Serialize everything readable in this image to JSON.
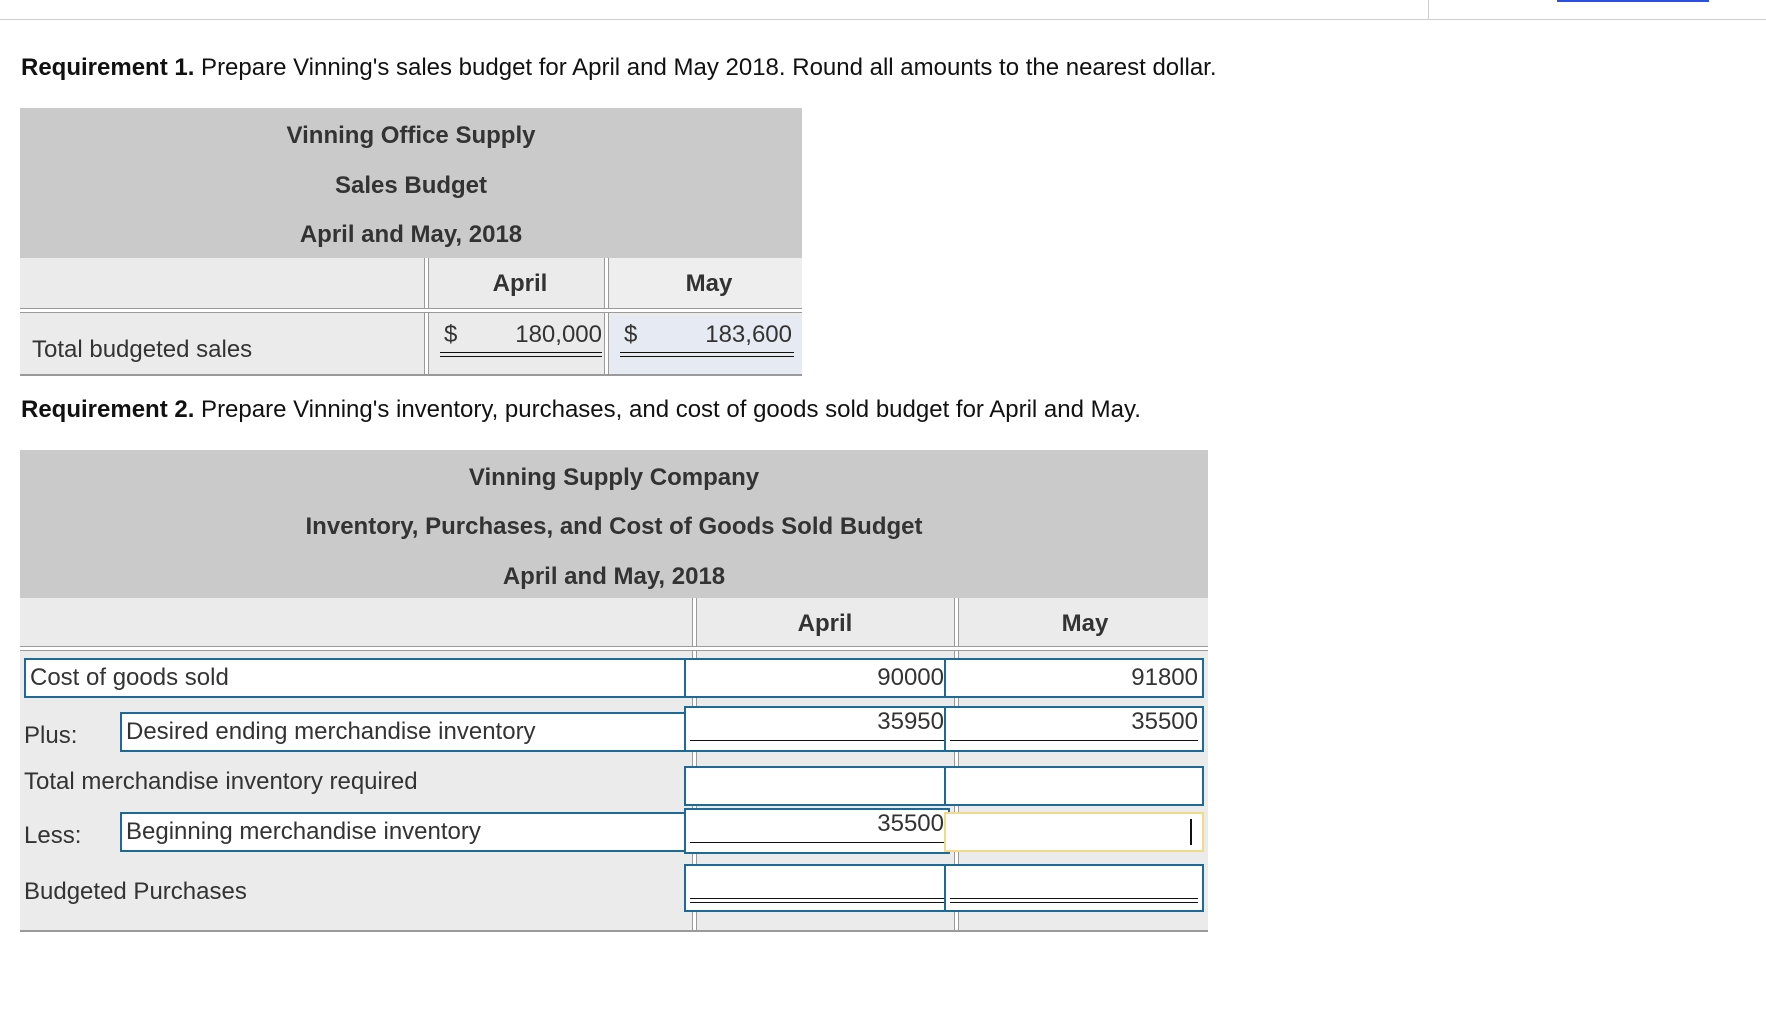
{
  "req1": {
    "bold": "Requirement 1.",
    "text": " Prepare Vinning's sales budget for April and May 2018. Round all amounts to the nearest dollar."
  },
  "sales_budget": {
    "title1": "Vinning Office Supply",
    "title2": "Sales Budget",
    "title3": "April and May, 2018",
    "col_april": "April",
    "col_may": "May",
    "row_label": "Total budgeted sales",
    "currency": "$",
    "april_value": "180,000",
    "may_value": "183,600"
  },
  "req2": {
    "bold": "Requirement 2.",
    "text": " Prepare Vinning's inventory, purchases, and cost of goods sold budget for April and May."
  },
  "inventory_budget": {
    "title1": "Vinning Supply Company",
    "title2": "Inventory, Purchases, and Cost of Goods Sold Budget",
    "title3": "April and May, 2018",
    "col_april": "April",
    "col_may": "May",
    "rows": {
      "cogs": {
        "label": "Cost of goods sold",
        "april": "90000",
        "may": "91800"
      },
      "ending": {
        "prefix": "Plus:",
        "label": "Desired ending merchandise inventory",
        "april": "35950",
        "may": "35500"
      },
      "total": {
        "label": "Total merchandise inventory required",
        "april": "",
        "may": ""
      },
      "beginning": {
        "prefix": "Less:",
        "label": "Beginning merchandise inventory",
        "april": "35500",
        "may": ""
      },
      "purchases": {
        "label": "Budgeted Purchases",
        "april": "",
        "may": ""
      }
    }
  },
  "colors": {
    "header_bg": "#cacaca",
    "band_bg": "#ebebeb",
    "input_border": "#1f6a94",
    "focus_border": "#f4d98a"
  }
}
